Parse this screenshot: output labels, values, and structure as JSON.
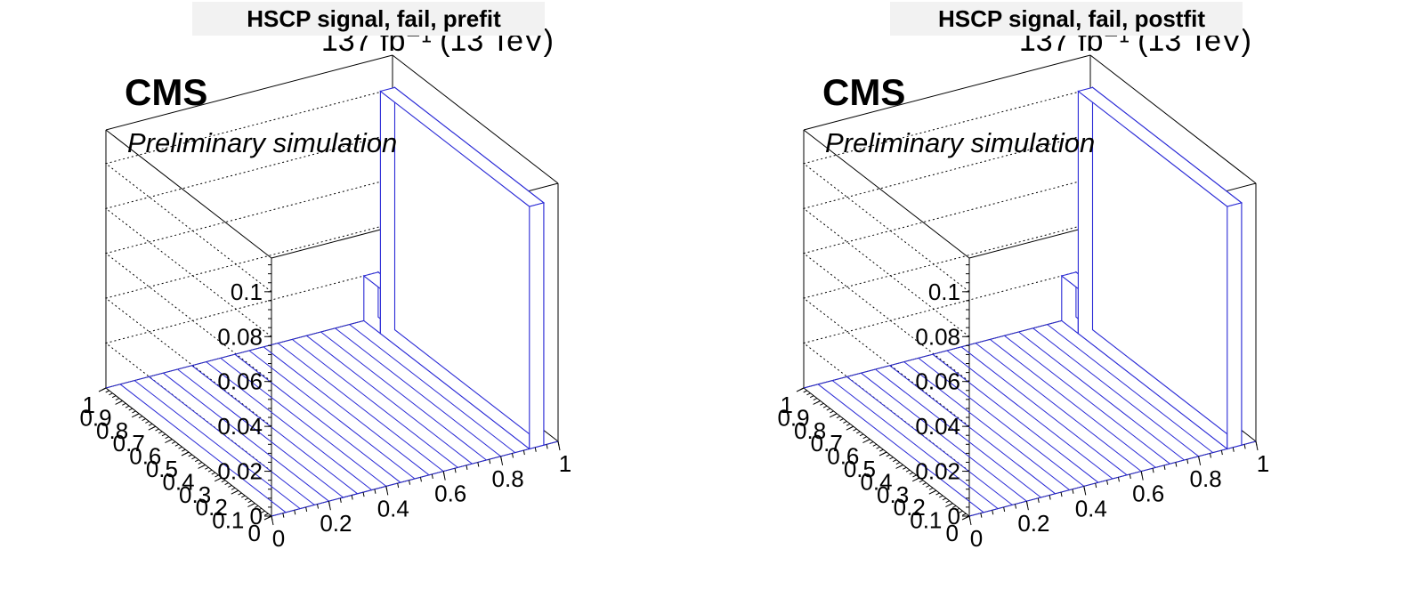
{
  "lumi_label": "137 fb⁻¹ (13 TeV)",
  "cms_label": "CMS",
  "extra_label": "Preliminary simulation",
  "chart_data": [
    {
      "type": "lego3d",
      "title": "HSCP signal, fail, prefit",
      "x_ticks": [
        "0",
        "0.2",
        "0.4",
        "0.6",
        "0.8",
        "1"
      ],
      "y_ticks": [
        "0",
        "0.1",
        "0.2",
        "0.3",
        "0.4",
        "0.5",
        "0.6",
        "0.7",
        "0.8",
        "0.9",
        "1"
      ],
      "z_ticks": [
        "0",
        "0.02",
        "0.04",
        "0.06",
        "0.08",
        "0.1"
      ],
      "xlim": [
        0,
        1
      ],
      "ylim": [
        0,
        1
      ],
      "zlim": [
        0,
        0.115
      ],
      "nbins_x": 20,
      "nbins_y": 10,
      "grid": true,
      "nonzero_bins": [
        {
          "x_range": [
            0.9,
            0.95
          ],
          "y_range": [
            0.0,
            0.9
          ],
          "value": 0.108
        },
        {
          "x_range": [
            0.9,
            0.95
          ],
          "y_range": [
            0.9,
            1.0
          ],
          "value": 0.02
        }
      ]
    },
    {
      "type": "lego3d",
      "title": "HSCP signal, fail, postfit",
      "x_ticks": [
        "0",
        "0.2",
        "0.4",
        "0.6",
        "0.8",
        "1"
      ],
      "y_ticks": [
        "0",
        "0.1",
        "0.2",
        "0.3",
        "0.4",
        "0.5",
        "0.6",
        "0.7",
        "0.8",
        "0.9",
        "1"
      ],
      "z_ticks": [
        "0",
        "0.02",
        "0.04",
        "0.06",
        "0.08",
        "0.1"
      ],
      "xlim": [
        0,
        1
      ],
      "ylim": [
        0,
        1
      ],
      "zlim": [
        0,
        0.115
      ],
      "nbins_x": 20,
      "nbins_y": 10,
      "grid": true,
      "nonzero_bins": [
        {
          "x_range": [
            0.9,
            0.95
          ],
          "y_range": [
            0.0,
            0.9
          ],
          "value": 0.108
        },
        {
          "x_range": [
            0.9,
            0.95
          ],
          "y_range": [
            0.9,
            1.0
          ],
          "value": 0.02
        }
      ]
    }
  ]
}
